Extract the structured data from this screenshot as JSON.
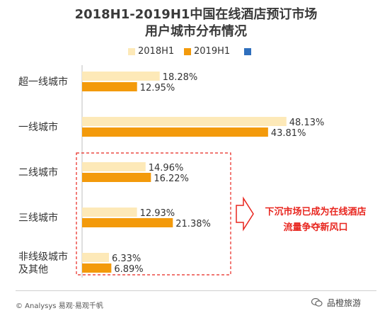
{
  "title_line1": "2018H1-2019H1中国在线酒店预订市场",
  "title_line2": "用户城市分布情况",
  "legend": [
    {
      "label": "2018H1",
      "color": "#fde9b8"
    },
    {
      "label": "2019H1",
      "color": "#f39a0b"
    },
    {
      "label": "",
      "color": "#2f6fbd"
    }
  ],
  "callout": {
    "line1": "下沉市场已成为在线酒店",
    "line2": "流量争夺新风口"
  },
  "footer": {
    "copyright": "© Analysys 易观·易观千帆",
    "brand": "品橙旅游"
  },
  "chart_data": {
    "type": "bar",
    "orientation": "horizontal",
    "title": "2018H1-2019H1中国在线酒店预订市场用户城市分布情况",
    "categories": [
      "超一线城市",
      "一线城市",
      "二线城市",
      "三线城市",
      "非线级城市\n及其他"
    ],
    "series": [
      {
        "name": "2018H1",
        "values": [
          18.28,
          48.13,
          14.96,
          12.93,
          6.33
        ],
        "labels": [
          "18.28%",
          "48.13%",
          "14.96%",
          "12.93%",
          "6.33%"
        ],
        "color": "#fde9b8"
      },
      {
        "name": "2019H1",
        "values": [
          12.95,
          43.81,
          16.22,
          21.38,
          6.89
        ],
        "labels": [
          "12.95%",
          "43.81%",
          "16.22%",
          "21.38%",
          "6.89%"
        ],
        "color": "#f39a0b"
      }
    ],
    "xlim": [
      0,
      50
    ],
    "grid": false,
    "legend_position": "top"
  }
}
